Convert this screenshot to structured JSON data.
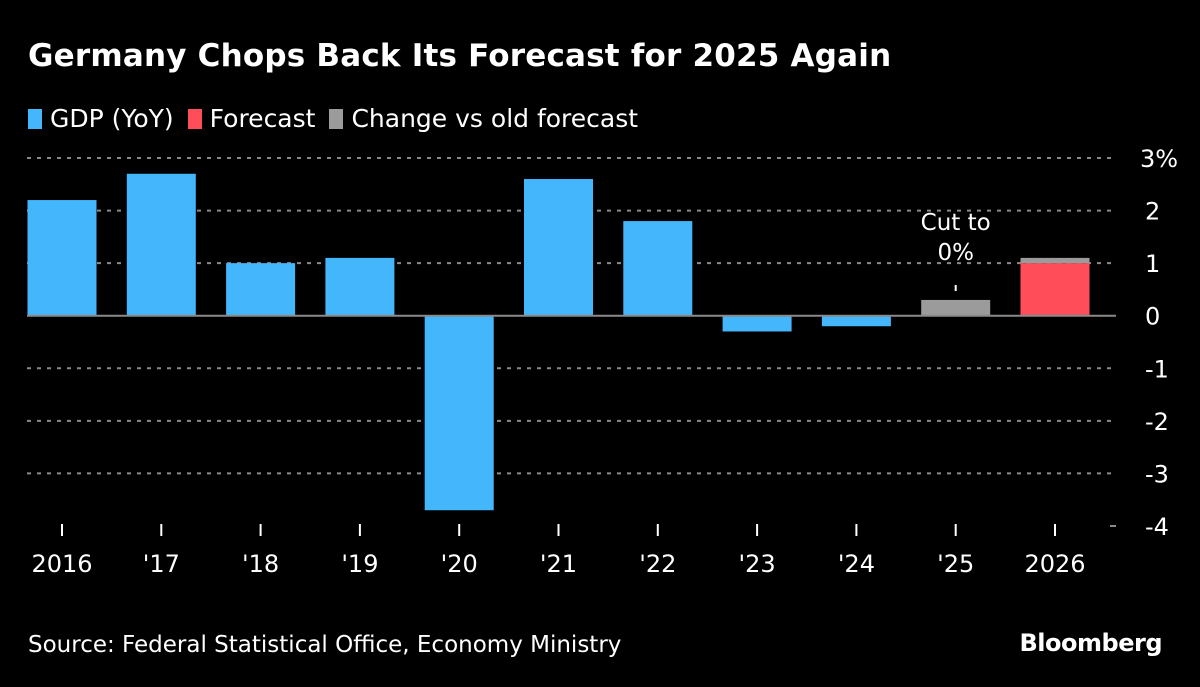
{
  "header": {
    "title": "Germany Chops Back Its Forecast for 2025 Again"
  },
  "legend": [
    {
      "label": "GDP (YoY)",
      "color": "#44b6fb"
    },
    {
      "label": "Forecast",
      "color": "#ff4d5a"
    },
    {
      "label": "Change vs old forecast",
      "color": "#9b9b9b"
    }
  ],
  "footer": {
    "source": "Source: Federal Statistical Office, Economy Ministry",
    "brand": "Bloomberg"
  },
  "chart_data": {
    "type": "bar",
    "title": "Germany Chops Back Its Forecast for 2025 Again",
    "xlabel": "",
    "ylabel": "",
    "categories": [
      "2016",
      "'17",
      "'18",
      "'19",
      "'20",
      "'21",
      "'22",
      "'23",
      "'24",
      "'25",
      "2026"
    ],
    "series": [
      {
        "name": "GDP (YoY)",
        "color": "#44b6fb",
        "values": [
          2.2,
          2.7,
          1.0,
          1.1,
          -3.7,
          2.6,
          1.8,
          -0.3,
          -0.2,
          null,
          null
        ]
      },
      {
        "name": "Forecast",
        "color": "#ff4d5a",
        "values": [
          null,
          null,
          null,
          null,
          null,
          null,
          null,
          null,
          null,
          0.0,
          1.0
        ]
      },
      {
        "name": "Change vs old forecast",
        "color": "#9b9b9b",
        "values": [
          null,
          null,
          null,
          null,
          null,
          null,
          null,
          null,
          null,
          0.3,
          0.1
        ]
      }
    ],
    "ylim": [
      -4,
      3
    ],
    "yticks": [
      3,
      2,
      1,
      0,
      -1,
      -2,
      -3,
      -4
    ],
    "ytick_labels": [
      "3%",
      "2",
      "1",
      "0",
      "-1",
      "-2",
      "-3",
      "-4"
    ],
    "y_axis_position": "right",
    "grid": true,
    "legend_position": "top-left",
    "annotations": [
      {
        "category": "'25",
        "lines": [
          "Cut to",
          "0%"
        ]
      }
    ]
  }
}
